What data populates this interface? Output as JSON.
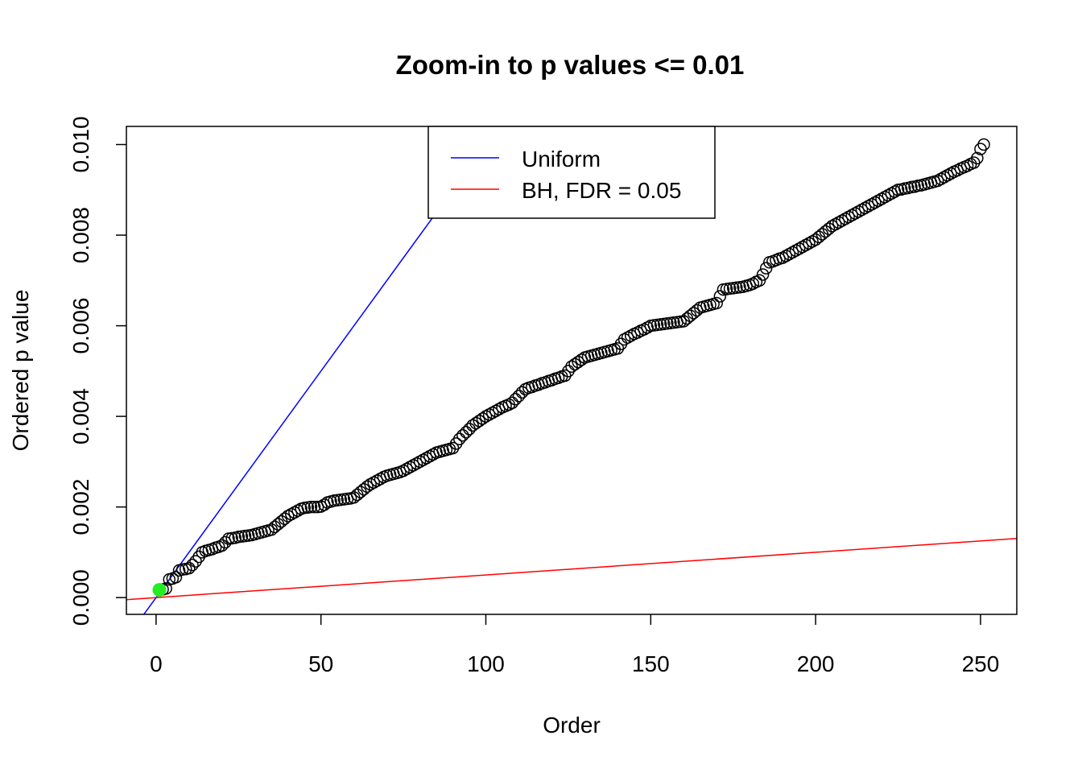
{
  "chart_data": {
    "type": "scatter",
    "title": "Zoom-in to p values <= 0.01",
    "xlabel": "Order",
    "ylabel": "Ordered p value",
    "xlim": [
      -9,
      261
    ],
    "ylim": [
      -0.00037,
      0.0104
    ],
    "xticks": [
      0,
      50,
      100,
      150,
      200,
      250
    ],
    "xtick_labels": [
      "0",
      "50",
      "100",
      "150",
      "200",
      "250"
    ],
    "yticks": [
      0,
      0.002,
      0.004,
      0.006,
      0.008,
      0.01
    ],
    "ytick_labels": [
      "0.000",
      "0.002",
      "0.004",
      "0.006",
      "0.008",
      "0.010"
    ],
    "grid": false,
    "legend": {
      "placement": "top",
      "entries": [
        {
          "label": "Uniform",
          "color": "#0000ff"
        },
        {
          "label": "BH, FDR = 0.05",
          "color": "#ff0000"
        }
      ]
    },
    "lines": [
      {
        "name": "Uniform",
        "slope": 0.0001,
        "intercept": 0,
        "color": "#0000ff"
      },
      {
        "name": "BH, FDR = 0.05",
        "slope": 5e-06,
        "intercept": 0,
        "color": "#ff0000"
      }
    ],
    "highlight": {
      "index": 1,
      "color": "#22ee22"
    },
    "point_color": "#000000",
    "series": [
      {
        "x_start": 1,
        "values": [
          0.00017,
          0.00018,
          0.0002,
          0.0004,
          0.00042,
          0.00045,
          0.0006,
          0.00062,
          0.00063,
          0.00065,
          0.00072,
          0.0008,
          0.0009,
          0.001,
          0.00103,
          0.00105,
          0.00107,
          0.0011,
          0.00112,
          0.00115,
          0.00122,
          0.0013,
          0.00131,
          0.00132,
          0.00134,
          0.00135,
          0.00136,
          0.00137,
          0.00138,
          0.0014,
          0.00142,
          0.00144,
          0.00146,
          0.00148,
          0.0015,
          0.00156,
          0.00162,
          0.00168,
          0.00174,
          0.0018,
          0.00184,
          0.00188,
          0.00192,
          0.00196,
          0.00198,
          0.00199,
          0.002,
          0.002,
          0.002,
          0.00201,
          0.00205,
          0.0021,
          0.00212,
          0.00214,
          0.00215,
          0.00216,
          0.00217,
          0.00218,
          0.00219,
          0.00221,
          0.00227,
          0.00233,
          0.00239,
          0.00245,
          0.0025,
          0.00254,
          0.00258,
          0.00262,
          0.00266,
          0.00269,
          0.00271,
          0.00273,
          0.00275,
          0.00277,
          0.0028,
          0.00284,
          0.00288,
          0.00292,
          0.00296,
          0.003,
          0.00304,
          0.00308,
          0.00312,
          0.00316,
          0.0032,
          0.00322,
          0.00324,
          0.00326,
          0.00328,
          0.0033,
          0.0034,
          0.0035,
          0.00358,
          0.00365,
          0.00372,
          0.0038,
          0.00385,
          0.0039,
          0.00395,
          0.004,
          0.00404,
          0.00408,
          0.00412,
          0.00416,
          0.0042,
          0.00423,
          0.00426,
          0.0043,
          0.00438,
          0.00445,
          0.00453,
          0.0046,
          0.00463,
          0.00465,
          0.00468,
          0.0047,
          0.00473,
          0.00475,
          0.00478,
          0.0048,
          0.00483,
          0.00485,
          0.00488,
          0.0049,
          0.005,
          0.0051,
          0.00515,
          0.0052,
          0.00525,
          0.0053,
          0.00532,
          0.00534,
          0.00536,
          0.00538,
          0.0054,
          0.00542,
          0.00544,
          0.00546,
          0.00548,
          0.0055,
          0.0056,
          0.0057,
          0.00574,
          0.00578,
          0.00582,
          0.00585,
          0.00589,
          0.00592,
          0.00596,
          0.006,
          0.00601,
          0.00602,
          0.00603,
          0.00604,
          0.00605,
          0.00606,
          0.00607,
          0.00608,
          0.00609,
          0.0061,
          0.00616,
          0.00622,
          0.00628,
          0.00634,
          0.0064,
          0.00642,
          0.00644,
          0.00646,
          0.00648,
          0.0065,
          0.00665,
          0.0068,
          0.00681,
          0.00682,
          0.00683,
          0.00684,
          0.00685,
          0.00686,
          0.00688,
          0.0069,
          0.00693,
          0.00697,
          0.007,
          0.00713,
          0.00727,
          0.0074,
          0.00742,
          0.00745,
          0.00748,
          0.0075,
          0.00754,
          0.00758,
          0.00762,
          0.00766,
          0.0077,
          0.00774,
          0.00778,
          0.00782,
          0.00786,
          0.0079,
          0.00796,
          0.00802,
          0.00808,
          0.00814,
          0.0082,
          0.00824,
          0.00828,
          0.00832,
          0.00836,
          0.0084,
          0.00844,
          0.00848,
          0.00852,
          0.00856,
          0.0086,
          0.00864,
          0.00868,
          0.00872,
          0.00876,
          0.0088,
          0.00884,
          0.00888,
          0.00892,
          0.00896,
          0.009,
          0.00901,
          0.00903,
          0.00904,
          0.00906,
          0.00907,
          0.00909,
          0.0091,
          0.00912,
          0.00914,
          0.00916,
          0.00918,
          0.0092,
          0.00924,
          0.00928,
          0.00932,
          0.00936,
          0.0094,
          0.00943,
          0.00947,
          0.0095,
          0.00953,
          0.00957,
          0.0096,
          0.0097,
          0.0099,
          0.01
        ]
      }
    ]
  }
}
